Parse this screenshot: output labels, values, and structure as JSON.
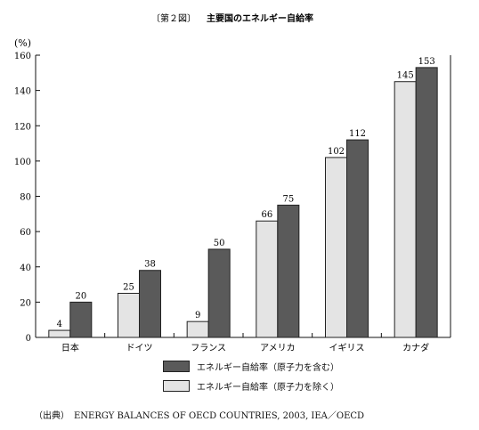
{
  "figure_label": "〔第２図〕",
  "title": "主要国のエネルギー自給率",
  "source": "（出典）　ENERGY BALANCES OF OECD COUNTRIES, 2003, IEA／OECD",
  "chart_data": {
    "type": "bar",
    "title": "主要国のエネルギー自給率",
    "ylabel": "(%)",
    "xlabel": "",
    "ylim": [
      0,
      160
    ],
    "yticks": [
      0,
      20,
      40,
      60,
      80,
      100,
      120,
      140,
      160
    ],
    "grid": false,
    "legend_position": "bottom",
    "categories": [
      "日本",
      "ドイツ",
      "フランス",
      "アメリカ",
      "イギリス",
      "カナダ"
    ],
    "series": [
      {
        "name": "エネルギー自給率（原子力を除く）",
        "values": [
          4,
          25,
          9,
          66,
          102,
          145
        ],
        "color": "#e4e4e4"
      },
      {
        "name": "エネルギー自給率（原子力を含む）",
        "values": [
          20,
          38,
          50,
          75,
          112,
          153
        ],
        "color": "#5a5a5a"
      }
    ],
    "legend_order": [
      1,
      0
    ]
  }
}
